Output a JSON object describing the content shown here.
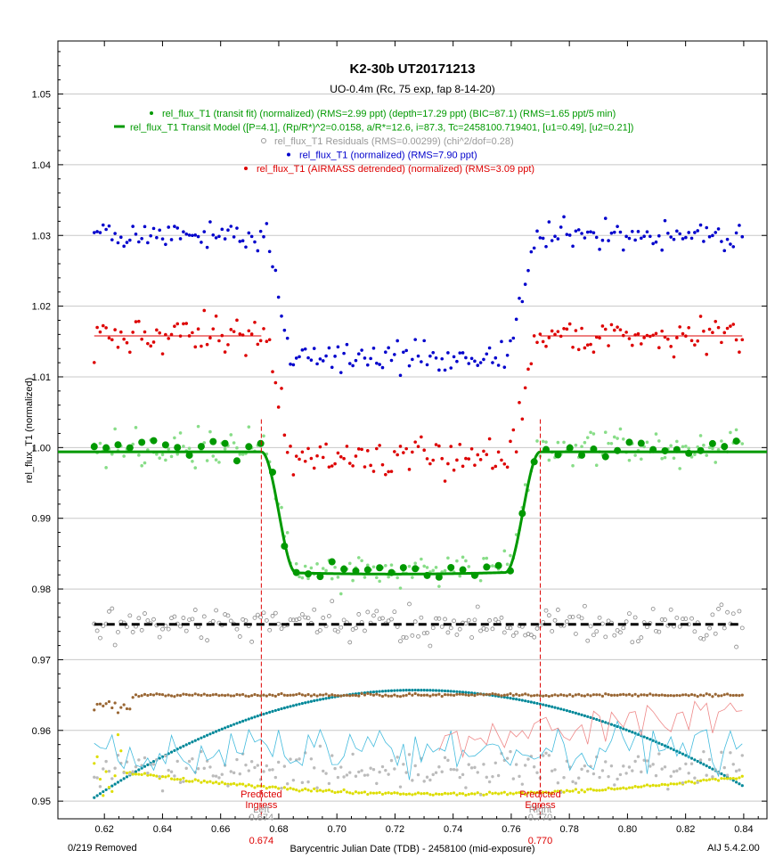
{
  "footer": {
    "removed": "0/219 Removed",
    "version": "AIJ 5.4.2.00"
  },
  "chart_data": {
    "type": "scatter",
    "title": "K2-30b UT20171213",
    "subtitle": "UO-0.4m (Rc, 75 exp, fap 8-14-20)",
    "xlabel": "Barycentric Julian Date (TDB) - 2458100 (mid-exposure)",
    "ylabel": "rel_flux_T1 (normalized)",
    "xlim": [
      0.604,
      0.848
    ],
    "ylim": [
      0.9475,
      1.0575
    ],
    "x_ticks": [
      0.62,
      0.64,
      0.66,
      0.68,
      0.7,
      0.72,
      0.74,
      0.76,
      0.78,
      0.8,
      0.82,
      0.84
    ],
    "x_tick_labels": [
      "0.62",
      "0.64",
      "0.66",
      "0.68",
      "0.70",
      "0.72",
      "0.74",
      "0.76",
      "0.78",
      "0.80",
      "0.82",
      "0.84"
    ],
    "y_ticks": [
      0.95,
      0.96,
      0.97,
      0.98,
      0.99,
      1.0,
      1.01,
      1.02,
      1.03,
      1.04,
      1.05
    ],
    "y_tick_labels": [
      "0.95",
      "0.96",
      "0.97",
      "0.98",
      "0.99",
      "1.00",
      "1.01",
      "1.02",
      "1.03",
      "1.04",
      "1.05"
    ],
    "grid": true,
    "legend": [
      {
        "text": "rel_flux_T1 (transit fit) (normalized) (RMS=2.99 ppt) (depth=17.29 ppt) (BIC=87.1) (RMS=1.65 ppt/5 min)",
        "color": "#009900",
        "marker": "dot"
      },
      {
        "text": "rel_flux_T1 Transit Model ([P=4.1], (Rp/R*)^2=0.0158, a/R*=12.6, i=87.3, Tc=2458100.719401, [u1=0.49], [u2=0.21])",
        "color": "#009900",
        "marker": "dash"
      },
      {
        "text": "rel_flux_T1 Residuals (RMS=0.00299) (chi^2/dof=0.28)",
        "color": "#999999",
        "marker": "circle"
      },
      {
        "text": "rel_flux_T1 (normalized) (RMS=7.90 ppt)",
        "color": "#0000cc",
        "marker": "dot"
      },
      {
        "text": "rel_flux_T1 (AIRMASS detrended) (normalized) (RMS=3.09 ppt)",
        "color": "#dd0000",
        "marker": "dot"
      }
    ],
    "transit": {
      "ingress": 0.674,
      "egress": 0.77,
      "tc": 0.719401,
      "depth": 0.01729
    },
    "markers": [
      {
        "x": 0.674,
        "lines": [
          "Predicted",
          "Ingress"
        ],
        "sub": "Left",
        "sub_value": "0.674",
        "axis_value": "0.674",
        "color": "#dd0000"
      },
      {
        "x": 0.77,
        "lines": [
          "Predicted",
          "Egress"
        ],
        "sub": "Right",
        "sub_value": "0.770",
        "axis_value": "0.770",
        "color": "#dd0000"
      }
    ],
    "series": [
      {
        "name": "rel_flux_T1 (normalized)",
        "color": "#0000cc",
        "baseline": 1.03,
        "scatter": 0.0035,
        "marker": "dot"
      },
      {
        "name": "rel_flux_T1 (AIRMASS detrended) (normalized)",
        "color": "#dd0000",
        "baseline": 1.0158,
        "scatter": 0.0025,
        "marker": "dot",
        "offset_line": 1.0158
      },
      {
        "name": "rel_flux_T1 (transit fit) (normalized)",
        "color": "#009900",
        "baseline": 1.0,
        "scatter": 0.0025,
        "marker": "dot",
        "binned": true
      },
      {
        "name": "rel_flux_T1 Transit Model",
        "color": "#009900",
        "baseline": 0.9994,
        "marker": "line"
      },
      {
        "name": "rel_flux_T1 Residuals",
        "color": "#999999",
        "baseline": 0.975,
        "scatter": 0.0025,
        "marker": "circle",
        "zero_line": 0.975
      },
      {
        "name": "airmass",
        "color": "#008899",
        "y_start": 0.9505,
        "y_peak": 0.9657,
        "y_end": 0.9522,
        "marker": "dot"
      },
      {
        "name": "sky",
        "color": "#996633",
        "baseline": 0.965,
        "marker": "dot"
      },
      {
        "name": "fwhm",
        "color": "#dddd00",
        "y_start": 0.954,
        "y_min": 0.951,
        "y_end": 0.9555,
        "marker": "dot"
      }
    ]
  }
}
